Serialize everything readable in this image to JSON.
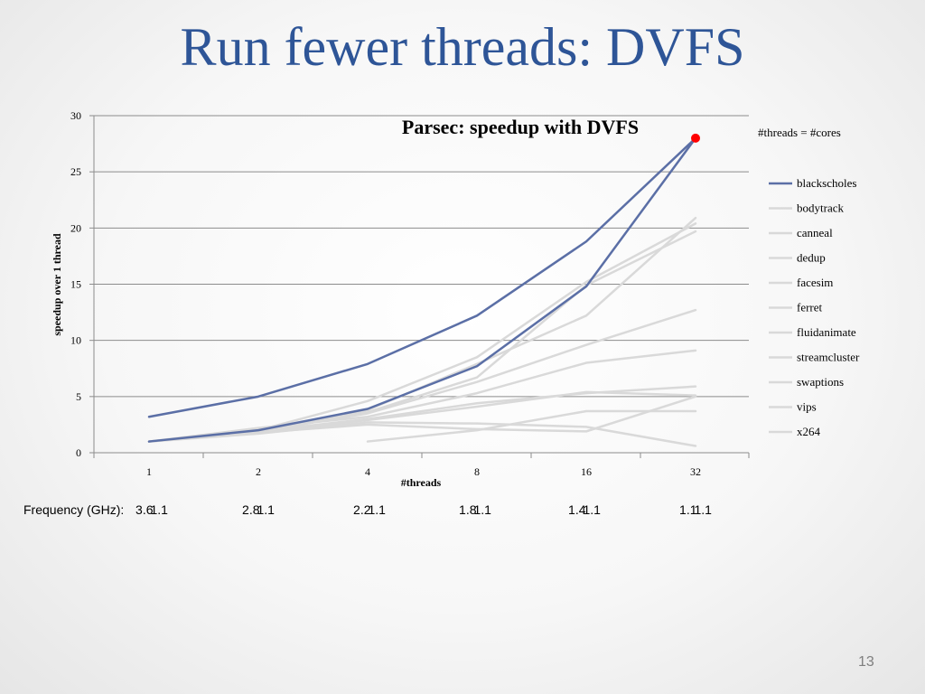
{
  "slide": {
    "title": "Run fewer threads: DVFS",
    "page_number": "13"
  },
  "frequency": {
    "label": "Frequency (GHz):",
    "values": [
      {
        "a": "3.6",
        "b": "1.1"
      },
      {
        "a": "2.8",
        "b": "1.1"
      },
      {
        "a": "2.2",
        "b": "1.1"
      },
      {
        "a": "1.8",
        "b": "1.1"
      },
      {
        "a": "1.4",
        "b": "1.1"
      },
      {
        "a": "1.1",
        "b": "1.1"
      }
    ]
  },
  "chart_data": {
    "type": "line",
    "title": "Parsec: speedup with DVFS",
    "xlabel": "#threads",
    "ylabel": "speedup over 1 thread",
    "x": [
      "1",
      "2",
      "4",
      "8",
      "16",
      "32"
    ],
    "ylim": [
      0,
      30
    ],
    "yticks": [
      0,
      5,
      10,
      15,
      20,
      25,
      30
    ],
    "grid": true,
    "legend_position": "right",
    "annotation": "#threads = #cores",
    "highlight_point": {
      "x": "32",
      "y": 28,
      "color": "#FF0000"
    },
    "reference_series": {
      "color": "#5B6FA6",
      "values": [
        3.2,
        5.0,
        7.9,
        12.2,
        18.8,
        28.0
      ]
    },
    "series": [
      {
        "name": "blackscholes",
        "color": "#5B6FA6",
        "values": [
          1.0,
          2.0,
          3.9,
          7.7,
          14.8,
          28.0
        ]
      },
      {
        "name": "bodytrack",
        "color": "#D9D9D9",
        "values": [
          1.0,
          2.0,
          4.6,
          8.5,
          15.2,
          20.4
        ]
      },
      {
        "name": "canneal",
        "color": "#D9D9D9",
        "values": [
          1.0,
          1.9,
          3.8,
          7.9,
          12.2,
          20.9
        ]
      },
      {
        "name": "dedup",
        "color": "#D9D9D9",
        "values": [
          1.0,
          1.8,
          3.6,
          6.7,
          14.9,
          19.7
        ]
      },
      {
        "name": "facesim",
        "color": "#D9D9D9",
        "values": [
          1.0,
          1.9,
          3.5,
          6.3,
          9.6,
          12.7
        ]
      },
      {
        "name": "ferret",
        "color": "#D9D9D9",
        "values": [
          1.0,
          2.2,
          3.2,
          5.3,
          8.0,
          9.1
        ]
      },
      {
        "name": "fluidanimate",
        "color": "#D9D9D9",
        "values": [
          1.0,
          1.9,
          3.0,
          4.4,
          5.3,
          5.9
        ]
      },
      {
        "name": "streamcluster",
        "color": "#D9D9D9",
        "values": [
          1.0,
          1.8,
          2.9,
          4.1,
          5.4,
          5.1
        ]
      },
      {
        "name": "swaptions",
        "color": "#D9D9D9",
        "values": [
          1.0,
          1.7,
          2.7,
          2.6,
          2.3,
          0.6
        ]
      },
      {
        "name": "vips",
        "color": "#D9D9D9",
        "values": [
          null,
          null,
          1.0,
          2.0,
          3.7,
          3.7
        ]
      },
      {
        "name": "x264",
        "color": "#D9D9D9",
        "values": [
          1.0,
          1.8,
          2.5,
          2.1,
          1.9,
          5.0
        ]
      }
    ]
  }
}
